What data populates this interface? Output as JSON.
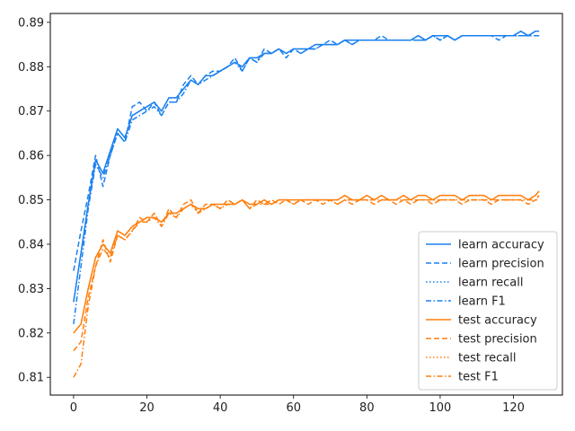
{
  "chart_data": {
    "type": "line",
    "title": "",
    "xlabel": "",
    "ylabel": "",
    "xlim": [
      -6.35,
      133.35
    ],
    "ylim": [
      0.806,
      0.892
    ],
    "xticks": [
      0,
      20,
      40,
      60,
      80,
      100,
      120
    ],
    "yticks": [
      0.81,
      0.82,
      0.83,
      0.84,
      0.85,
      0.86,
      0.87,
      0.88,
      0.89
    ],
    "ytick_labels": [
      "0.81",
      "0.82",
      "0.83",
      "0.84",
      "0.85",
      "0.86",
      "0.87",
      "0.88",
      "0.89"
    ],
    "grid": false,
    "legend_position": "lower-right",
    "colors": {
      "learn": "#1a80f0",
      "test": "#ff7f0e"
    },
    "x": [
      0,
      2,
      4,
      6,
      8,
      10,
      12,
      14,
      16,
      18,
      20,
      22,
      24,
      26,
      28,
      30,
      32,
      34,
      36,
      38,
      40,
      42,
      44,
      46,
      48,
      50,
      52,
      54,
      56,
      58,
      60,
      62,
      64,
      66,
      68,
      70,
      72,
      74,
      76,
      78,
      80,
      82,
      84,
      86,
      88,
      90,
      92,
      94,
      96,
      98,
      100,
      102,
      104,
      106,
      108,
      110,
      112,
      114,
      116,
      118,
      120,
      122,
      124,
      126,
      127
    ],
    "series": [
      {
        "name": "learn accuracy",
        "group": "learn",
        "dash": "solid",
        "values": [
          0.827,
          0.838,
          0.849,
          0.859,
          0.856,
          0.861,
          0.866,
          0.864,
          0.869,
          0.87,
          0.871,
          0.872,
          0.87,
          0.873,
          0.873,
          0.875,
          0.877,
          0.876,
          0.878,
          0.878,
          0.879,
          0.88,
          0.881,
          0.88,
          0.882,
          0.882,
          0.883,
          0.883,
          0.884,
          0.883,
          0.884,
          0.884,
          0.884,
          0.885,
          0.885,
          0.885,
          0.885,
          0.886,
          0.886,
          0.886,
          0.886,
          0.886,
          0.886,
          0.886,
          0.886,
          0.886,
          0.886,
          0.887,
          0.886,
          0.887,
          0.887,
          0.887,
          0.886,
          0.887,
          0.887,
          0.887,
          0.887,
          0.887,
          0.887,
          0.887,
          0.887,
          0.888,
          0.887,
          0.888,
          0.888
        ]
      },
      {
        "name": "learn precision",
        "group": "learn",
        "dash": "dashed",
        "values": [
          0.834,
          0.843,
          0.851,
          0.86,
          0.853,
          0.86,
          0.865,
          0.863,
          0.871,
          0.872,
          0.87,
          0.872,
          0.869,
          0.872,
          0.872,
          0.876,
          0.878,
          0.876,
          0.878,
          0.879,
          0.879,
          0.88,
          0.882,
          0.879,
          0.882,
          0.881,
          0.884,
          0.883,
          0.884,
          0.882,
          0.884,
          0.883,
          0.884,
          0.884,
          0.885,
          0.886,
          0.885,
          0.886,
          0.885,
          0.886,
          0.886,
          0.886,
          0.887,
          0.886,
          0.886,
          0.886,
          0.886,
          0.886,
          0.886,
          0.887,
          0.886,
          0.887,
          0.886,
          0.887,
          0.887,
          0.887,
          0.887,
          0.887,
          0.886,
          0.887,
          0.887,
          0.887,
          0.887,
          0.887,
          0.887
        ]
      },
      {
        "name": "learn recall",
        "group": "learn",
        "dash": "dotted",
        "values": [
          0.827,
          0.838,
          0.849,
          0.859,
          0.856,
          0.861,
          0.866,
          0.864,
          0.869,
          0.87,
          0.871,
          0.872,
          0.87,
          0.873,
          0.873,
          0.875,
          0.877,
          0.876,
          0.878,
          0.878,
          0.879,
          0.88,
          0.881,
          0.88,
          0.882,
          0.882,
          0.883,
          0.883,
          0.884,
          0.883,
          0.884,
          0.884,
          0.884,
          0.885,
          0.885,
          0.885,
          0.885,
          0.886,
          0.886,
          0.886,
          0.886,
          0.886,
          0.886,
          0.886,
          0.886,
          0.886,
          0.886,
          0.887,
          0.886,
          0.887,
          0.887,
          0.887,
          0.886,
          0.887,
          0.887,
          0.887,
          0.887,
          0.887,
          0.887,
          0.887,
          0.887,
          0.888,
          0.887,
          0.888,
          0.888
        ]
      },
      {
        "name": "learn F1",
        "group": "learn",
        "dash": "dashdot",
        "values": [
          0.822,
          0.835,
          0.848,
          0.858,
          0.855,
          0.86,
          0.865,
          0.863,
          0.868,
          0.869,
          0.87,
          0.871,
          0.869,
          0.872,
          0.872,
          0.874,
          0.877,
          0.876,
          0.877,
          0.878,
          0.879,
          0.88,
          0.881,
          0.879,
          0.882,
          0.881,
          0.883,
          0.883,
          0.884,
          0.883,
          0.884,
          0.883,
          0.884,
          0.884,
          0.885,
          0.885,
          0.885,
          0.886,
          0.885,
          0.886,
          0.886,
          0.886,
          0.886,
          0.886,
          0.886,
          0.886,
          0.886,
          0.886,
          0.886,
          0.887,
          0.886,
          0.887,
          0.886,
          0.887,
          0.887,
          0.887,
          0.887,
          0.887,
          0.887,
          0.887,
          0.887,
          0.887,
          0.887,
          0.887,
          0.887
        ]
      },
      {
        "name": "test accuracy",
        "group": "test",
        "dash": "solid",
        "values": [
          0.82,
          0.822,
          0.83,
          0.837,
          0.84,
          0.838,
          0.843,
          0.842,
          0.844,
          0.845,
          0.846,
          0.846,
          0.845,
          0.847,
          0.847,
          0.848,
          0.849,
          0.848,
          0.848,
          0.849,
          0.849,
          0.849,
          0.849,
          0.85,
          0.849,
          0.849,
          0.85,
          0.849,
          0.85,
          0.85,
          0.85,
          0.85,
          0.85,
          0.85,
          0.85,
          0.85,
          0.85,
          0.851,
          0.85,
          0.85,
          0.851,
          0.85,
          0.851,
          0.85,
          0.85,
          0.851,
          0.85,
          0.851,
          0.851,
          0.85,
          0.851,
          0.851,
          0.851,
          0.85,
          0.851,
          0.851,
          0.851,
          0.85,
          0.851,
          0.851,
          0.851,
          0.851,
          0.85,
          0.851,
          0.852
        ]
      },
      {
        "name": "test precision",
        "group": "test",
        "dash": "dashed",
        "values": [
          0.816,
          0.818,
          0.828,
          0.835,
          0.841,
          0.836,
          0.842,
          0.841,
          0.843,
          0.846,
          0.845,
          0.847,
          0.844,
          0.848,
          0.846,
          0.849,
          0.85,
          0.847,
          0.849,
          0.849,
          0.848,
          0.85,
          0.849,
          0.85,
          0.848,
          0.85,
          0.849,
          0.85,
          0.849,
          0.85,
          0.849,
          0.85,
          0.849,
          0.85,
          0.849,
          0.85,
          0.849,
          0.85,
          0.849,
          0.85,
          0.85,
          0.849,
          0.85,
          0.85,
          0.849,
          0.85,
          0.849,
          0.85,
          0.85,
          0.849,
          0.85,
          0.85,
          0.85,
          0.849,
          0.85,
          0.85,
          0.85,
          0.849,
          0.85,
          0.85,
          0.85,
          0.85,
          0.849,
          0.85,
          0.85
        ]
      },
      {
        "name": "test recall",
        "group": "test",
        "dash": "dotted",
        "values": [
          0.82,
          0.822,
          0.83,
          0.837,
          0.84,
          0.838,
          0.843,
          0.842,
          0.844,
          0.845,
          0.846,
          0.846,
          0.845,
          0.847,
          0.847,
          0.848,
          0.849,
          0.848,
          0.848,
          0.849,
          0.849,
          0.849,
          0.849,
          0.85,
          0.849,
          0.849,
          0.85,
          0.849,
          0.85,
          0.85,
          0.85,
          0.85,
          0.85,
          0.85,
          0.85,
          0.85,
          0.85,
          0.851,
          0.85,
          0.85,
          0.851,
          0.85,
          0.851,
          0.85,
          0.85,
          0.851,
          0.85,
          0.851,
          0.851,
          0.85,
          0.851,
          0.851,
          0.851,
          0.85,
          0.851,
          0.851,
          0.851,
          0.85,
          0.851,
          0.851,
          0.851,
          0.851,
          0.85,
          0.851,
          0.852
        ]
      },
      {
        "name": "test F1",
        "group": "test",
        "dash": "dashdot",
        "values": [
          0.81,
          0.813,
          0.826,
          0.835,
          0.839,
          0.837,
          0.842,
          0.841,
          0.843,
          0.845,
          0.845,
          0.846,
          0.844,
          0.847,
          0.846,
          0.848,
          0.849,
          0.847,
          0.848,
          0.849,
          0.848,
          0.849,
          0.849,
          0.85,
          0.848,
          0.849,
          0.849,
          0.849,
          0.85,
          0.85,
          0.849,
          0.85,
          0.85,
          0.85,
          0.85,
          0.85,
          0.849,
          0.85,
          0.85,
          0.85,
          0.85,
          0.85,
          0.85,
          0.85,
          0.85,
          0.85,
          0.85,
          0.85,
          0.85,
          0.85,
          0.85,
          0.85,
          0.85,
          0.85,
          0.85,
          0.85,
          0.85,
          0.85,
          0.85,
          0.85,
          0.85,
          0.85,
          0.85,
          0.85,
          0.851
        ]
      }
    ]
  }
}
